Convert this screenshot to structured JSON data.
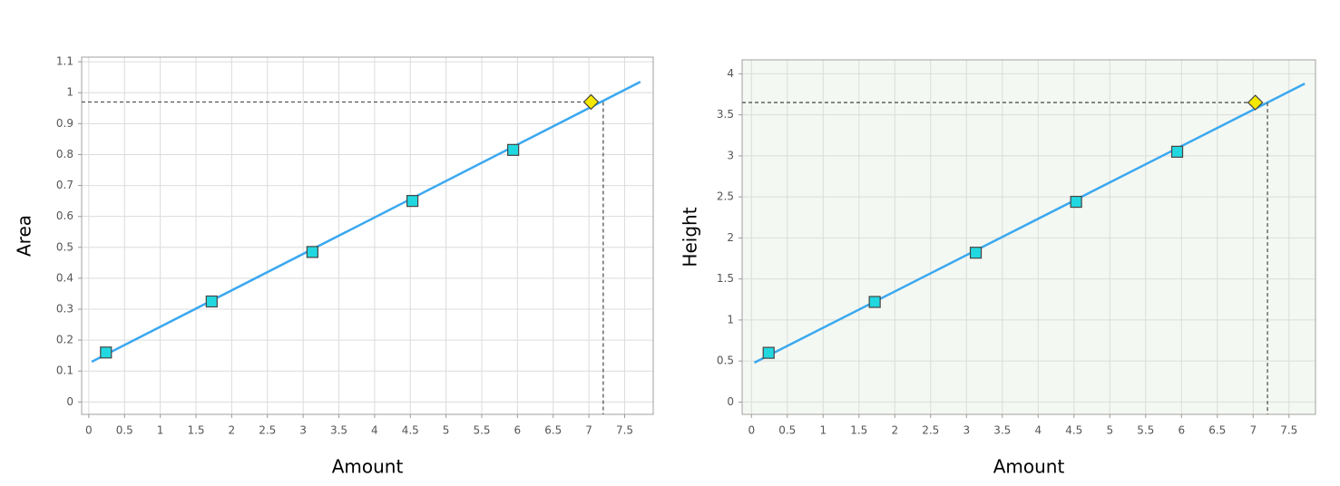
{
  "chart_data": [
    {
      "type": "line",
      "xlabel": "Amount",
      "ylabel": "Area",
      "xlim": [
        -0.1,
        7.9
      ],
      "ylim": [
        -0.04,
        1.115
      ],
      "xticks": [
        0,
        0.5,
        1,
        1.5,
        2,
        2.5,
        3,
        3.5,
        4,
        4.5,
        5,
        5.5,
        6,
        6.5,
        7,
        7.5
      ],
      "yticks": [
        0,
        0.1,
        0.2,
        0.3,
        0.4,
        0.5,
        0.6,
        0.7,
        0.8,
        0.9,
        1,
        1.1
      ],
      "grid": true,
      "background": "#ffffff",
      "series": [
        {
          "color": "#3aa8f0",
          "x": [
            0.04,
            7.72
          ],
          "values": [
            0.13,
            1.035
          ]
        },
        {
          "color": "#22d8e0",
          "marker": "square",
          "x": [
            0.24,
            1.72,
            3.13,
            4.53,
            5.94
          ],
          "values": [
            0.16,
            0.325,
            0.485,
            0.65,
            0.815
          ]
        },
        {
          "color": "#f5e800",
          "marker": "diamond",
          "x": [
            7.03
          ],
          "values": [
            0.97
          ],
          "guide_x": 7.2
        }
      ]
    },
    {
      "type": "line",
      "xlabel": "Amount",
      "ylabel": "Height",
      "xlim": [
        -0.13,
        7.87
      ],
      "ylim": [
        -0.15,
        4.17
      ],
      "xticks": [
        0,
        0.5,
        1,
        1.5,
        2,
        2.5,
        3,
        3.5,
        4,
        4.5,
        5,
        5.5,
        6,
        6.5,
        7,
        7.5
      ],
      "yticks": [
        0,
        0.5,
        1,
        1.5,
        2,
        2.5,
        3,
        3.5,
        4
      ],
      "grid": true,
      "background": "#f4f8f2",
      "series": [
        {
          "color": "#3aa8f0",
          "x": [
            0.04,
            7.72
          ],
          "values": [
            0.48,
            3.88
          ]
        },
        {
          "color": "#22d8e0",
          "marker": "square",
          "x": [
            0.24,
            1.72,
            3.13,
            4.53,
            5.94
          ],
          "values": [
            0.6,
            1.22,
            1.82,
            2.44,
            3.05
          ]
        },
        {
          "color": "#f5e800",
          "marker": "diamond",
          "x": [
            7.03
          ],
          "values": [
            3.65
          ],
          "guide_x": 7.2
        }
      ]
    }
  ]
}
